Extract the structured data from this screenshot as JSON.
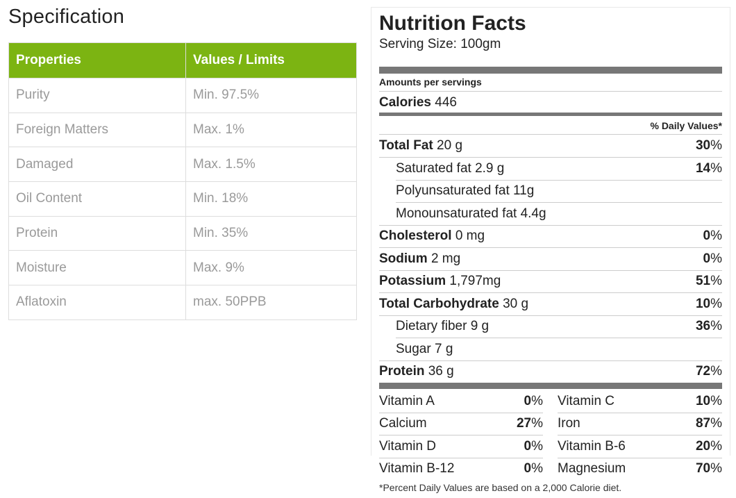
{
  "spec": {
    "title": "Specification",
    "headers": [
      "Properties",
      "Values / Limits"
    ],
    "rows": [
      [
        "Purity",
        "Min. 97.5%"
      ],
      [
        "Foreign Matters",
        "Max. 1%"
      ],
      [
        "Damaged",
        "Max. 1.5%"
      ],
      [
        "Oil Content",
        "Min. 18%"
      ],
      [
        "Protein",
        "Min. 35%"
      ],
      [
        "Moisture",
        "Max. 9%"
      ],
      [
        "Aflatoxin",
        "max. 50PPB"
      ]
    ],
    "header_color": "#7cb412"
  },
  "nutrition": {
    "title": "Nutrition Facts",
    "serving": "Serving Size: 100gm",
    "amounts_label": "Amounts per servings",
    "calories_label": "Calories",
    "calories_value": "446",
    "dv_header": "% Daily Values*",
    "nutrients": [
      {
        "name": "Total Fat",
        "amount": "20 g",
        "pct": "30",
        "bold": true
      },
      {
        "name": "Saturated fat",
        "amount": "2.9 g",
        "pct": "14",
        "bold": false
      },
      {
        "name": "Polyunsaturated fat",
        "amount": "11g",
        "pct": "",
        "bold": false
      },
      {
        "name": "Monounsaturated fat",
        "amount": "4.4g",
        "pct": "",
        "bold": false
      },
      {
        "name": "Cholesterol",
        "amount": "0 mg",
        "pct": "0",
        "bold": true
      },
      {
        "name": "Sodium",
        "amount": "2 mg",
        "pct": "0",
        "bold": true
      },
      {
        "name": "Potassium",
        "amount": "1,797mg",
        "pct": "51",
        "bold": true
      },
      {
        "name": "Total Carbohydrate",
        "amount": "30 g",
        "pct": "10",
        "bold": true
      },
      {
        "name": "Dietary fiber",
        "amount": "9 g",
        "pct": "36",
        "bold": false
      },
      {
        "name": "Sugar",
        "amount": "7 g",
        "pct": "",
        "bold": false
      },
      {
        "name": "Protein",
        "amount": "36 g",
        "pct": "72",
        "bold": true
      }
    ],
    "vitamins": [
      [
        {
          "name": "Vitamin A",
          "pct": "0"
        },
        {
          "name": "Vitamin C",
          "pct": "10"
        }
      ],
      [
        {
          "name": "Calcium",
          "pct": "27"
        },
        {
          "name": "Iron",
          "pct": "87"
        }
      ],
      [
        {
          "name": "Vitamin D",
          "pct": "0"
        },
        {
          "name": "Vitamin B-6",
          "pct": "20"
        }
      ],
      [
        {
          "name": "Vitamin B-12",
          "pct": "0"
        },
        {
          "name": "Magnesium",
          "pct": "70"
        }
      ]
    ],
    "footnote": "*Percent Daily Values are based on a 2,000 Calorie diet.",
    "bar_color": "#777777"
  }
}
